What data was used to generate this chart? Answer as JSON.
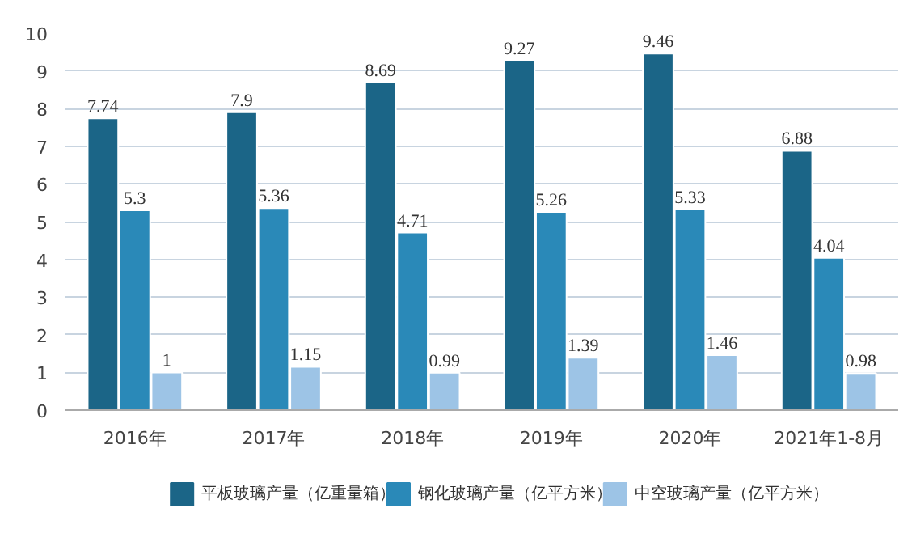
{
  "chart_data": {
    "type": "bar",
    "categories": [
      "2016年",
      "2017年",
      "2018年",
      "2019年",
      "2020年",
      "2021年1-8月"
    ],
    "series": [
      {
        "name": "平板玻璃产量（亿重量箱）",
        "color": "#1b6587",
        "values": [
          7.74,
          7.9,
          8.69,
          9.27,
          9.46,
          6.88
        ]
      },
      {
        "name": "钢化玻璃产量（亿平方米）",
        "color": "#2a89b8",
        "values": [
          5.3,
          5.36,
          4.71,
          5.26,
          5.33,
          4.04
        ]
      },
      {
        "name": "中空玻璃产量（亿平方米）",
        "color": "#9dc4e6",
        "values": [
          1,
          1.15,
          0.99,
          1.39,
          1.46,
          0.98
        ]
      }
    ],
    "ylim": [
      0,
      10
    ],
    "yticks": [
      0,
      1,
      2,
      3,
      4,
      5,
      6,
      7,
      8,
      9,
      10
    ],
    "grid": "y",
    "legend": "bottom",
    "data_labels": true
  }
}
